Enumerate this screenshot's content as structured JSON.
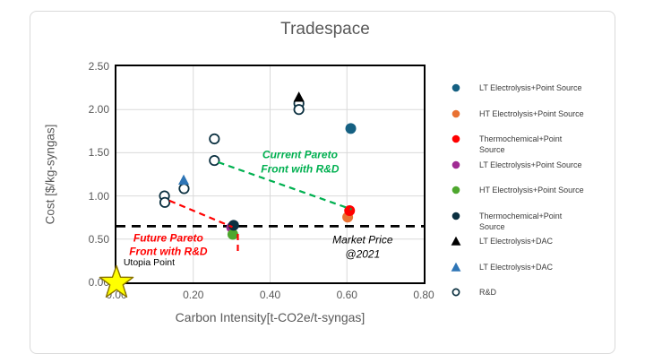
{
  "chart_data": {
    "type": "scatter",
    "title": "Tradespace",
    "xlabel": "Carbon Intensity[t-CO2e/t-syngas]",
    "ylabel": "Cost [$/kg-syngas]",
    "xlim": [
      0,
      0.8
    ],
    "ylim": [
      0,
      2.5
    ],
    "x_tick_values": [
      0,
      0.2,
      0.4,
      0.6,
      0.8
    ],
    "x_tick_labels": [
      "0.00",
      "0.20",
      "0.40",
      "0.60",
      "0.80"
    ],
    "y_tick_values": [
      0,
      0.5,
      1.0,
      1.5,
      2.0,
      2.5
    ],
    "y_tick_labels": [
      "0.00",
      "0.50",
      "1.00",
      "1.50",
      "2.00",
      "2.50"
    ],
    "grid": true,
    "grid_color": "#d9d9d9",
    "legend_position": "right",
    "series": [
      {
        "name": "LT Electrolysis+Point Source",
        "marker": "circle",
        "color": "#156082",
        "points": [
          [
            0.61,
            1.78
          ]
        ]
      },
      {
        "name": "HT Electrolysis+Point Source",
        "marker": "circle",
        "color": "#E97132",
        "points": [
          [
            0.602,
            0.755
          ]
        ]
      },
      {
        "name": "Thermochemical+Point Source",
        "marker": "circle",
        "color": "#FF0000",
        "points": [
          [
            0.607,
            0.83
          ]
        ]
      },
      {
        "name": "LT Electrolysis+Point Source (R&D)",
        "marker": "circle",
        "color": "#A02B93",
        "points": [
          [
            0.3,
            0.635
          ]
        ]
      },
      {
        "name": "HT Electrolysis+Point Source (R&D)",
        "marker": "circle",
        "color": "#4EA72E",
        "points": [
          [
            0.303,
            0.555
          ]
        ]
      },
      {
        "name": "Thermochemical+Point Source (R&D)",
        "marker": "circle",
        "color": "#0B3040",
        "points": [
          [
            0.305,
            0.66
          ]
        ]
      },
      {
        "name": "LT Electrolysis+DAC",
        "marker": "triangle",
        "color": "#000000",
        "points": [
          [
            0.475,
            2.14
          ]
        ]
      },
      {
        "name": "LT Electrolysis+DAC (blue)",
        "marker": "triangle",
        "color": "#2E75B6",
        "points": [
          [
            0.175,
            1.18
          ]
        ]
      },
      {
        "name": "R&D",
        "marker": "open-circle",
        "color": "#0B3040",
        "points": [
          [
            0.475,
            2.07
          ],
          [
            0.475,
            2.0
          ],
          [
            0.255,
            1.66
          ],
          [
            0.255,
            1.41
          ],
          [
            0.176,
            1.085
          ],
          [
            0.125,
            1.0
          ],
          [
            0.126,
            0.925
          ]
        ]
      }
    ],
    "reference_lines": [
      {
        "name": "market-price-line",
        "color": "#000000",
        "width": 2.8,
        "dash": "10 7",
        "layer": "back",
        "from": [
          0,
          0.65
        ],
        "to": [
          0.8,
          0.65
        ]
      },
      {
        "name": "current-pareto-line",
        "color": "#00B050",
        "width": 2.2,
        "dash": "7 5",
        "layer": "front",
        "from": [
          0.265,
          1.39
        ],
        "to": [
          0.612,
          0.845
        ]
      },
      {
        "name": "future-pareto-line",
        "color": "#FF0000",
        "width": 2.2,
        "dash": "7 5",
        "layer": "front",
        "from": [
          0.138,
          0.945
        ],
        "to": [
          0.302,
          0.64
        ]
      },
      {
        "name": "future-pareto-drop-line",
        "color": "#FF0000",
        "width": 2.2,
        "dash": "7 5",
        "layer": "front",
        "from": [
          0.316,
          0.56
        ],
        "to": [
          0.316,
          0.355
        ]
      }
    ],
    "annotations": [
      {
        "name": "current-pareto-label",
        "text": "Current Pareto\nFront with R&D",
        "x": 0.478,
        "y": 1.39,
        "color": "#00B050",
        "bold": true,
        "italic": true,
        "size": 12
      },
      {
        "name": "future-pareto-label",
        "text": "Future Pareto\nFront with R&D",
        "x": 0.135,
        "y": 0.43,
        "color": "#FF0000",
        "bold": true,
        "italic": true,
        "size": 12
      },
      {
        "name": "market-price-label",
        "text": "Market Price\n@2021",
        "x": 0.641,
        "y": 0.4,
        "color": "#000000",
        "bold": false,
        "italic": true,
        "size": 12
      },
      {
        "name": "utopia-point-label",
        "text": "Utopia Point",
        "x": 0.085,
        "y": 0.22,
        "color": "#000000",
        "bold": false,
        "italic": false,
        "size": 10.5
      }
    ],
    "utopia_star": {
      "x": 0,
      "y": 0,
      "fill": "#FFFF00",
      "outline": "#8a7400"
    }
  },
  "legend": {
    "items": [
      {
        "marker": "circle",
        "color": "#156082",
        "label": "LT Electrolysis+Point Source"
      },
      {
        "marker": "circle",
        "color": "#E97132",
        "label": "HT Electrolysis+Point Source"
      },
      {
        "marker": "circle",
        "color": "#FF0000",
        "label": "Thermochemical+Point\nSource"
      },
      {
        "marker": "circle",
        "color": "#A02B93",
        "label": "LT Electrolysis+Point Source"
      },
      {
        "marker": "circle",
        "color": "#4EA72E",
        "label": "HT Electrolysis+Point Source"
      },
      {
        "marker": "circle",
        "color": "#0B3040",
        "label": "Thermochemical+Point\nSource"
      },
      {
        "marker": "triangle",
        "color": "#000000",
        "label": "LT Electrolysis+DAC"
      },
      {
        "marker": "triangle",
        "color": "#2E75B6",
        "label": "LT Electrolysis+DAC"
      },
      {
        "marker": "open-circle",
        "color": "#0B3040",
        "label": "R&D"
      }
    ]
  }
}
